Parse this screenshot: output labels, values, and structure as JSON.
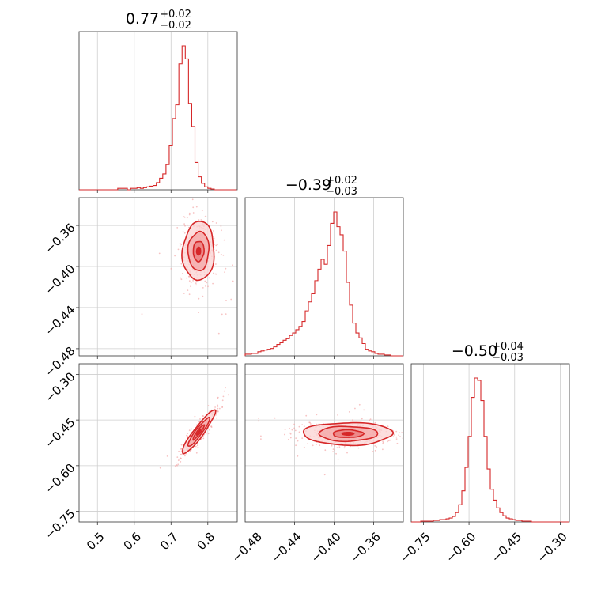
{
  "figure": {
    "type": "corner_plot",
    "colors": {
      "main": "#d62728",
      "light": "#f4aaaa",
      "fill_inner": "#e46e6e",
      "grid": "#cfcfcf",
      "axis": "#333333"
    }
  },
  "chart_data": [
    {
      "type": "histogram",
      "parameter_index": 0,
      "title_center": "0.77",
      "title_plus": "+0.02",
      "title_minus": "−0.02",
      "xlim": [
        0.45,
        0.88
      ],
      "x_ticks": [
        0.5,
        0.6,
        0.7,
        0.8
      ],
      "x_tick_labels": [
        "0.5",
        "0.6",
        "0.7",
        "0.8"
      ],
      "bins": {
        "start": 0.45,
        "width": 0.00875,
        "counts": [
          0,
          0,
          0,
          0,
          0,
          0,
          0,
          0,
          0,
          0,
          0,
          0,
          2,
          2,
          2,
          0,
          2,
          2,
          3,
          2,
          3,
          4,
          5,
          6,
          10,
          16,
          22,
          35,
          62,
          99,
          118,
          175,
          200,
          182,
          120,
          88,
          38,
          18,
          9,
          4,
          2,
          1,
          0,
          0,
          0,
          0,
          0,
          0,
          0
        ]
      }
    },
    {
      "type": "histogram",
      "parameter_index": 1,
      "title_center": "−0.39",
      "title_plus": "+0.02",
      "title_minus": "−0.03",
      "xlim": [
        -0.49,
        -0.33
      ],
      "x_ticks": [
        -0.48,
        -0.44,
        -0.4,
        -0.36
      ],
      "x_tick_labels": [
        "−0.48",
        "−0.44",
        "−0.40",
        "−0.36"
      ],
      "bins": {
        "start": -0.49,
        "width": 0.0032,
        "counts": [
          2,
          2,
          3,
          3,
          5,
          6,
          7,
          8,
          9,
          11,
          14,
          16,
          19,
          21,
          25,
          28,
          32,
          36,
          42,
          55,
          66,
          76,
          92,
          106,
          118,
          112,
          135,
          162,
          176,
          158,
          148,
          128,
          90,
          62,
          40,
          28,
          22,
          15,
          8,
          6,
          5,
          3,
          2,
          2,
          1,
          1,
          0,
          0,
          0,
          0
        ]
      }
    },
    {
      "type": "histogram",
      "parameter_index": 2,
      "title_center": "−0.50",
      "title_plus": "+0.04",
      "title_minus": "−0.03",
      "xlim": [
        -0.79,
        -0.27
      ],
      "x_ticks": [
        -0.75,
        -0.6,
        -0.45,
        -0.3
      ],
      "x_tick_labels": [
        "−0.75",
        "−0.60",
        "−0.45",
        "−0.30"
      ],
      "bins": {
        "start": -0.79,
        "width": 0.0104,
        "counts": [
          0,
          0,
          0,
          1,
          1,
          1,
          1,
          2,
          2,
          3,
          3,
          4,
          5,
          7,
          12,
          22,
          40,
          70,
          110,
          160,
          185,
          182,
          156,
          110,
          68,
          42,
          28,
          18,
          12,
          8,
          5,
          4,
          3,
          2,
          2,
          1,
          1,
          1,
          0,
          0,
          0,
          0,
          0,
          0,
          0,
          0,
          0,
          0,
          0,
          0
        ]
      }
    },
    {
      "type": "contour",
      "x_param": 0,
      "y_param": 1,
      "xlim": [
        0.45,
        0.88
      ],
      "ylim": [
        -0.487,
        -0.333
      ],
      "y_ticks": [
        -0.36,
        -0.4,
        -0.44,
        -0.48
      ],
      "y_tick_labels": [
        "−0.36",
        "−0.40",
        "−0.44",
        "−0.48"
      ],
      "mean": [
        0.775,
        -0.385
      ],
      "sigma": [
        0.021,
        0.014
      ],
      "rho": 0.05,
      "levels": [
        0.7,
        1.35,
        2.05
      ]
    },
    {
      "type": "contour",
      "x_param": 0,
      "y_param": 2,
      "xlim": [
        0.45,
        0.88
      ],
      "ylim": [
        -0.785,
        -0.265
      ],
      "y_ticks": [
        -0.3,
        -0.45,
        -0.6,
        -0.75
      ],
      "y_tick_labels": [
        "−0.30",
        "−0.45",
        "−0.60",
        "−0.75"
      ],
      "mean": [
        0.775,
        -0.49
      ],
      "sigma": [
        0.022,
        0.035
      ],
      "rho": 0.93,
      "levels": [
        0.7,
        1.35,
        2.05
      ]
    },
    {
      "type": "contour",
      "x_param": 1,
      "y_param": 2,
      "xlim": [
        -0.49,
        -0.33
      ],
      "ylim": [
        -0.785,
        -0.265
      ],
      "mean": [
        -0.386,
        -0.495
      ],
      "sigma": [
        0.022,
        0.018
      ],
      "rho": 0.0,
      "levels": [
        0.7,
        1.35,
        2.05
      ]
    }
  ]
}
